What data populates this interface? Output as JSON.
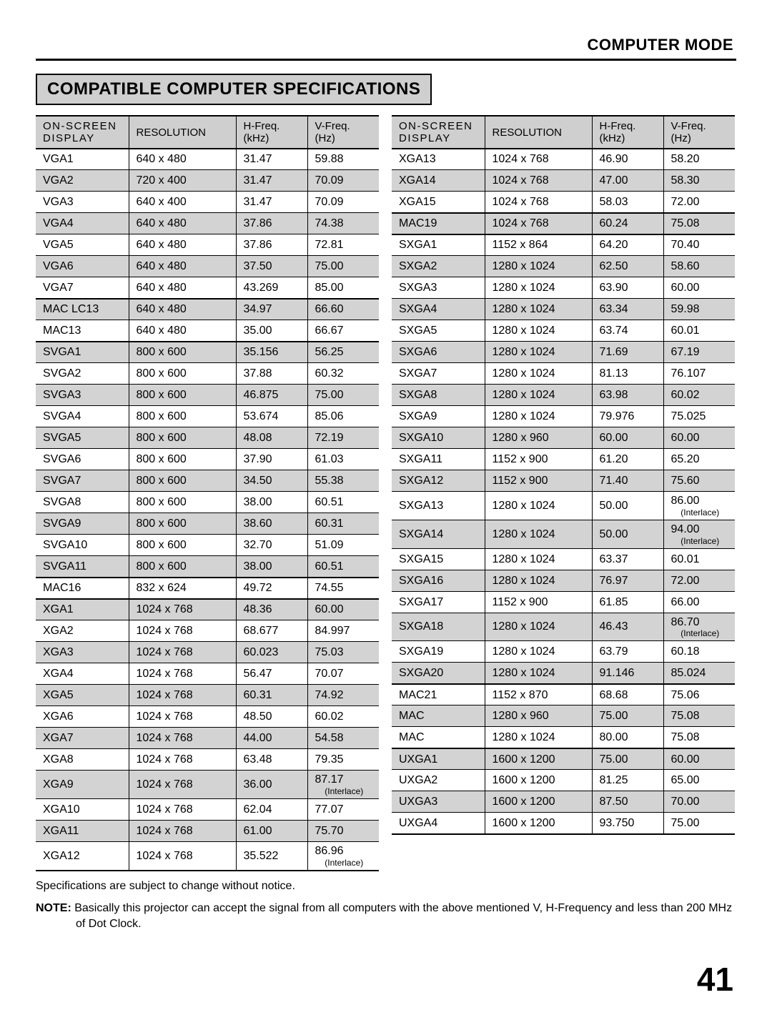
{
  "header": {
    "section": "COMPUTER MODE",
    "title": "COMPATIBLE COMPUTER SPECIFICATIONS",
    "page_number": "41"
  },
  "columns": {
    "c1_l1": "ON-SCREEN",
    "c1_l2": "DISPLAY",
    "c2": "RESOLUTION",
    "c3_l1": "H-Freq.",
    "c3_l2": "(kHz)",
    "c4_l1": "V-Freq.",
    "c4_l2": "(Hz)"
  },
  "table_left": [
    {
      "d": "VGA1",
      "r": "640 x 480",
      "h": "31.47",
      "v": "59.88"
    },
    {
      "d": "VGA2",
      "r": "720 x 400",
      "h": "31.47",
      "v": "70.09",
      "shade": true
    },
    {
      "d": "VGA3",
      "r": "640 x 400",
      "h": "31.47",
      "v": "70.09"
    },
    {
      "d": "VGA4",
      "r": "640 x 480",
      "h": "37.86",
      "v": "74.38",
      "shade": true
    },
    {
      "d": "VGA5",
      "r": "640 x 480",
      "h": "37.86",
      "v": "72.81"
    },
    {
      "d": "VGA6",
      "r": "640 x 480",
      "h": "37.50",
      "v": "75.00",
      "shade": true
    },
    {
      "d": "VGA7",
      "r": "640 x 480",
      "h": "43.269",
      "v": "85.00",
      "sep": true
    },
    {
      "d": "MAC LC13",
      "r": "640 x 480",
      "h": "34.97",
      "v": "66.60",
      "shade": true
    },
    {
      "d": "MAC13",
      "r": "640 x 480",
      "h": "35.00",
      "v": "66.67",
      "sep": true
    },
    {
      "d": "SVGA1",
      "r": "800 x 600",
      "h": "35.156",
      "v": "56.25",
      "shade": true
    },
    {
      "d": "SVGA2",
      "r": "800 x 600",
      "h": "37.88",
      "v": "60.32"
    },
    {
      "d": "SVGA3",
      "r": "800 x 600",
      "h": "46.875",
      "v": "75.00",
      "shade": true
    },
    {
      "d": "SVGA4",
      "r": "800 x 600",
      "h": "53.674",
      "v": "85.06"
    },
    {
      "d": "SVGA5",
      "r": "800 x 600",
      "h": "48.08",
      "v": "72.19",
      "shade": true
    },
    {
      "d": "SVGA6",
      "r": "800 x 600",
      "h": "37.90",
      "v": "61.03"
    },
    {
      "d": "SVGA7",
      "r": "800 x 600",
      "h": "34.50",
      "v": "55.38",
      "shade": true
    },
    {
      "d": "SVGA8",
      "r": "800 x 600",
      "h": "38.00",
      "v": "60.51"
    },
    {
      "d": "SVGA9",
      "r": "800 x 600",
      "h": "38.60",
      "v": "60.31",
      "shade": true
    },
    {
      "d": "SVGA10",
      "r": "800 x 600",
      "h": "32.70",
      "v": "51.09"
    },
    {
      "d": "SVGA11",
      "r": "800 x 600",
      "h": "38.00",
      "v": "60.51",
      "shade": true,
      "sep": true
    },
    {
      "d": "MAC16",
      "r": "832 x 624",
      "h": "49.72",
      "v": "74.55",
      "sep": true
    },
    {
      "d": "XGA1",
      "r": "1024 x 768",
      "h": "48.36",
      "v": "60.00",
      "shade": true
    },
    {
      "d": "XGA2",
      "r": "1024 x 768",
      "h": "68.677",
      "v": "84.997"
    },
    {
      "d": "XGA3",
      "r": "1024 x 768",
      "h": "60.023",
      "v": "75.03",
      "shade": true
    },
    {
      "d": "XGA4",
      "r": "1024 x 768",
      "h": "56.47",
      "v": "70.07"
    },
    {
      "d": "XGA5",
      "r": "1024 x 768",
      "h": "60.31",
      "v": "74.92",
      "shade": true
    },
    {
      "d": "XGA6",
      "r": "1024 x 768",
      "h": "48.50",
      "v": "60.02"
    },
    {
      "d": "XGA7",
      "r": "1024 x 768",
      "h": "44.00",
      "v": "54.58",
      "shade": true
    },
    {
      "d": "XGA8",
      "r": "1024 x 768",
      "h": "63.48",
      "v": "79.35"
    },
    {
      "d": "XGA9",
      "r": "1024 x 768",
      "h": "36.00",
      "v": "87.17",
      "interlace": true,
      "shade": true
    },
    {
      "d": "XGA10",
      "r": "1024 x 768",
      "h": "62.04",
      "v": "77.07"
    },
    {
      "d": "XGA11",
      "r": "1024 x 768",
      "h": "61.00",
      "v": "75.70",
      "shade": true
    },
    {
      "d": "XGA12",
      "r": "1024 x 768",
      "h": "35.522",
      "v": "86.96",
      "interlace": true,
      "sep": true
    }
  ],
  "table_right": [
    {
      "d": "XGA13",
      "r": "1024 x 768",
      "h": "46.90",
      "v": "58.20"
    },
    {
      "d": "XGA14",
      "r": "1024 x 768",
      "h": "47.00",
      "v": "58.30",
      "shade": true
    },
    {
      "d": "XGA15",
      "r": "1024 x 768",
      "h": "58.03",
      "v": "72.00",
      "sep": true
    },
    {
      "d": "MAC19",
      "r": "1024 x 768",
      "h": "60.24",
      "v": "75.08",
      "shade": true,
      "sep": true
    },
    {
      "d": "SXGA1",
      "r": "1152 x 864",
      "h": "64.20",
      "v": "70.40"
    },
    {
      "d": "SXGA2",
      "r": "1280 x 1024",
      "h": "62.50",
      "v": "58.60",
      "shade": true
    },
    {
      "d": "SXGA3",
      "r": "1280 x 1024",
      "h": "63.90",
      "v": "60.00"
    },
    {
      "d": "SXGA4",
      "r": "1280 x 1024",
      "h": "63.34",
      "v": "59.98",
      "shade": true
    },
    {
      "d": "SXGA5",
      "r": "1280 x 1024",
      "h": "63.74",
      "v": "60.01"
    },
    {
      "d": "SXGA6",
      "r": "1280 x 1024",
      "h": "71.69",
      "v": "67.19",
      "shade": true
    },
    {
      "d": "SXGA7",
      "r": "1280 x 1024",
      "h": "81.13",
      "v": "76.107"
    },
    {
      "d": "SXGA8",
      "r": "1280 x 1024",
      "h": "63.98",
      "v": "60.02",
      "shade": true
    },
    {
      "d": "SXGA9",
      "r": "1280 x 1024",
      "h": "79.976",
      "v": "75.025"
    },
    {
      "d": "SXGA10",
      "r": "1280 x 960",
      "h": "60.00",
      "v": "60.00",
      "shade": true
    },
    {
      "d": "SXGA11",
      "r": "1152 x 900",
      "h": "61.20",
      "v": "65.20"
    },
    {
      "d": "SXGA12",
      "r": "1152 x 900",
      "h": "71.40",
      "v": "75.60",
      "shade": true
    },
    {
      "d": "SXGA13",
      "r": "1280 x 1024",
      "h": "50.00",
      "v": "86.00",
      "interlace": true
    },
    {
      "d": "SXGA14",
      "r": "1280 x 1024",
      "h": "50.00",
      "v": "94.00",
      "interlace": true,
      "shade": true
    },
    {
      "d": "SXGA15",
      "r": "1280 x 1024",
      "h": "63.37",
      "v": "60.01"
    },
    {
      "d": "SXGA16",
      "r": "1280 x 1024",
      "h": "76.97",
      "v": "72.00",
      "shade": true
    },
    {
      "d": "SXGA17",
      "r": "1152 x 900",
      "h": "61.85",
      "v": "66.00"
    },
    {
      "d": "SXGA18",
      "r": "1280 x 1024",
      "h": "46.43",
      "v": "86.70",
      "interlace": true,
      "shade": true
    },
    {
      "d": "SXGA19",
      "r": "1280 x 1024",
      "h": "63.79",
      "v": "60.18"
    },
    {
      "d": "SXGA20",
      "r": "1280 x 1024",
      "h": "91.146",
      "v": "85.024",
      "shade": true,
      "sep": true
    },
    {
      "d": "MAC21",
      "r": "1152 x 870",
      "h": "68.68",
      "v": "75.06"
    },
    {
      "d": "MAC",
      "r": "1280 x 960",
      "h": "75.00",
      "v": "75.08",
      "shade": true
    },
    {
      "d": "MAC",
      "r": "1280 x 1024",
      "h": "80.00",
      "v": "75.08",
      "sep": true
    },
    {
      "d": "UXGA1",
      "r": "1600 x 1200",
      "h": "75.00",
      "v": "60.00",
      "shade": true
    },
    {
      "d": "UXGA2",
      "r": "1600 x 1200",
      "h": "81.25",
      "v": "65.00"
    },
    {
      "d": "UXGA3",
      "r": "1600 x 1200",
      "h": "87.50",
      "v": "70.00",
      "shade": true
    },
    {
      "d": "UXGA4",
      "r": "1600 x 1200",
      "h": "93.750",
      "v": "75.00",
      "sep": true
    }
  ],
  "footnotes": {
    "line1": "Specifications are subject to change without notice.",
    "note_label": "NOTE:",
    "note_text": " Basically this projector can accept the signal from all computers with the above mentioned V, H-Frequency and less than 200 MHz of Dot Clock."
  },
  "interlace_label": "(Interlace)"
}
